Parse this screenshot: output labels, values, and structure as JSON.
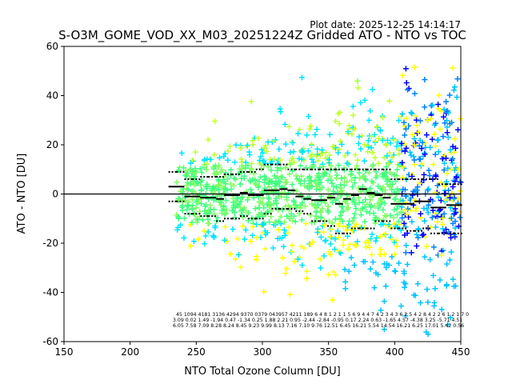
{
  "chart_data": {
    "type": "scatter",
    "plot_date": "Plot date: 2025-12-25 14:14:17",
    "title": "S-O3M_GOME_VOD_XX_M03_20251224Z Gridded ATO - NTO vs TOC",
    "xlabel": "NTO Total Ozone Column [DU]",
    "ylabel": "ATO - NTO [DU]",
    "xlim": [
      150,
      450
    ],
    "ylim": [
      -60,
      60
    ],
    "xticks": [
      150,
      200,
      250,
      300,
      350,
      400,
      450
    ],
    "yticks": [
      -60,
      -40,
      -20,
      0,
      20,
      40,
      60
    ],
    "reference_line_y": 0,
    "marker": "+",
    "color_scale": [
      "#00e5ff",
      "#00c4ff",
      "#0080ff",
      "#0000ff",
      "#40ff80",
      "#80ff60",
      "#c0ff30",
      "#ffff00"
    ],
    "bins": {
      "x": [
        232,
        238,
        244,
        250,
        256,
        262,
        268,
        274,
        280,
        286,
        292,
        298,
        304,
        310,
        316,
        322,
        328,
        334,
        340,
        346,
        352,
        358,
        364,
        370,
        376,
        382,
        388,
        394,
        400,
        406,
        412,
        418,
        424,
        430,
        436,
        442,
        448
      ],
      "mean": [
        3,
        3,
        -1,
        -1,
        -1.5,
        -1.5,
        -2,
        -0.5,
        -0.5,
        0.5,
        -0.5,
        -0.5,
        1.5,
        1.5,
        2,
        1.5,
        -1,
        -2,
        -2.5,
        -2.5,
        -1.5,
        -4,
        -2,
        -0.5,
        2,
        0.5,
        -0.5,
        -1.5,
        -4,
        -4,
        -4,
        -3,
        -3,
        -5.5,
        -5.5,
        -4.5,
        -4.5
      ],
      "upper": [
        9,
        9,
        6,
        6,
        7,
        7,
        7,
        8,
        8,
        9,
        9,
        10,
        12,
        12,
        12,
        10,
        10,
        10,
        10,
        10,
        10,
        10,
        10,
        10,
        10,
        10,
        10,
        10,
        6,
        6,
        6,
        6,
        6,
        6,
        4,
        4,
        4
      ],
      "lower": [
        -3,
        -3,
        -8,
        -8,
        -9,
        -9,
        -11,
        -10,
        -10,
        -9,
        -10,
        -10,
        -8,
        -6,
        -6,
        -6,
        -7,
        -8,
        -11,
        -11,
        -13,
        -16,
        -16,
        -14,
        -14,
        -14,
        -11,
        -11,
        -14,
        -14,
        -15,
        -15,
        -14,
        -16,
        -16,
        -16,
        -16
      ]
    },
    "annotations": {
      "counts": "45  1094 4181 3136 4294 9370 0379 043957 4211 189 6 4 8 1 2 1 1 5 6 9  4 4 7 4 2 3  4 3 6  2 5 4  2 8 4  2 2 6  1 2 1  7 0",
      "means": "3.09 0.02 1.49 -1.94 0.47 -1.34 0.25 1.88 2.21 0.95 -2.44 -2.84 -0.95 0.17 2.24 0.63 -1.65 4.57 -4.38 3.25 -5.71 4.51",
      "stds": "6.05 7.58 7.09 8.28 8.24 8.45 9.23 9.99 8.13 7.16 7.10 9.76 12.51 6.45 16.21 5.54 14.54 16.21 6.25 17.01 5.42 0.56"
    }
  }
}
